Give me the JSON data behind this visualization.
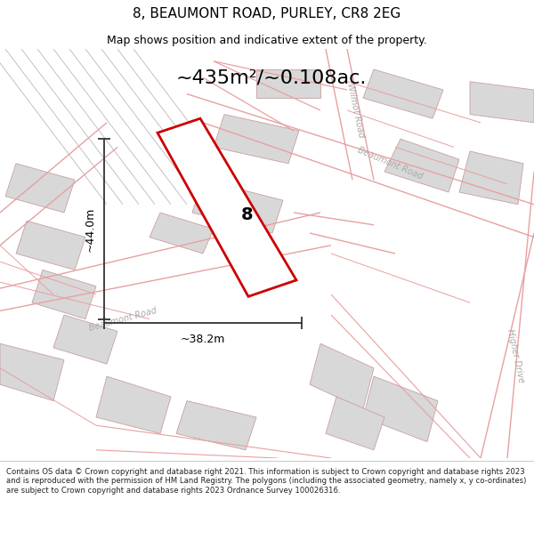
{
  "title": "8, BEAUMONT ROAD, PURLEY, CR8 2EG",
  "subtitle": "Map shows position and indicative extent of the property.",
  "area_text": "~435m²/~0.108ac.",
  "dim_width": "~38.2m",
  "dim_height": "~44.0m",
  "plot_number": "8",
  "bg_color": "#f7f7f7",
  "footer_text": "Contains OS data © Crown copyright and database right 2021. This information is subject to Crown copyright and database rights 2023 and is reproduced with the permission of HM Land Registry. The polygons (including the associated geometry, namely x, y co-ordinates) are subject to Crown copyright and database rights 2023 Ordnance Survey 100026316.",
  "road_line_color": "#e8a0a0",
  "building_color": "#d8d8d8",
  "building_edge": "#c8a0a0",
  "red_poly_color": "#cc0000",
  "dim_line_color": "#333333",
  "text_color": "#000000",
  "road_text_color": "#aaaaaa",
  "stripe_color": "#aaaaaa"
}
